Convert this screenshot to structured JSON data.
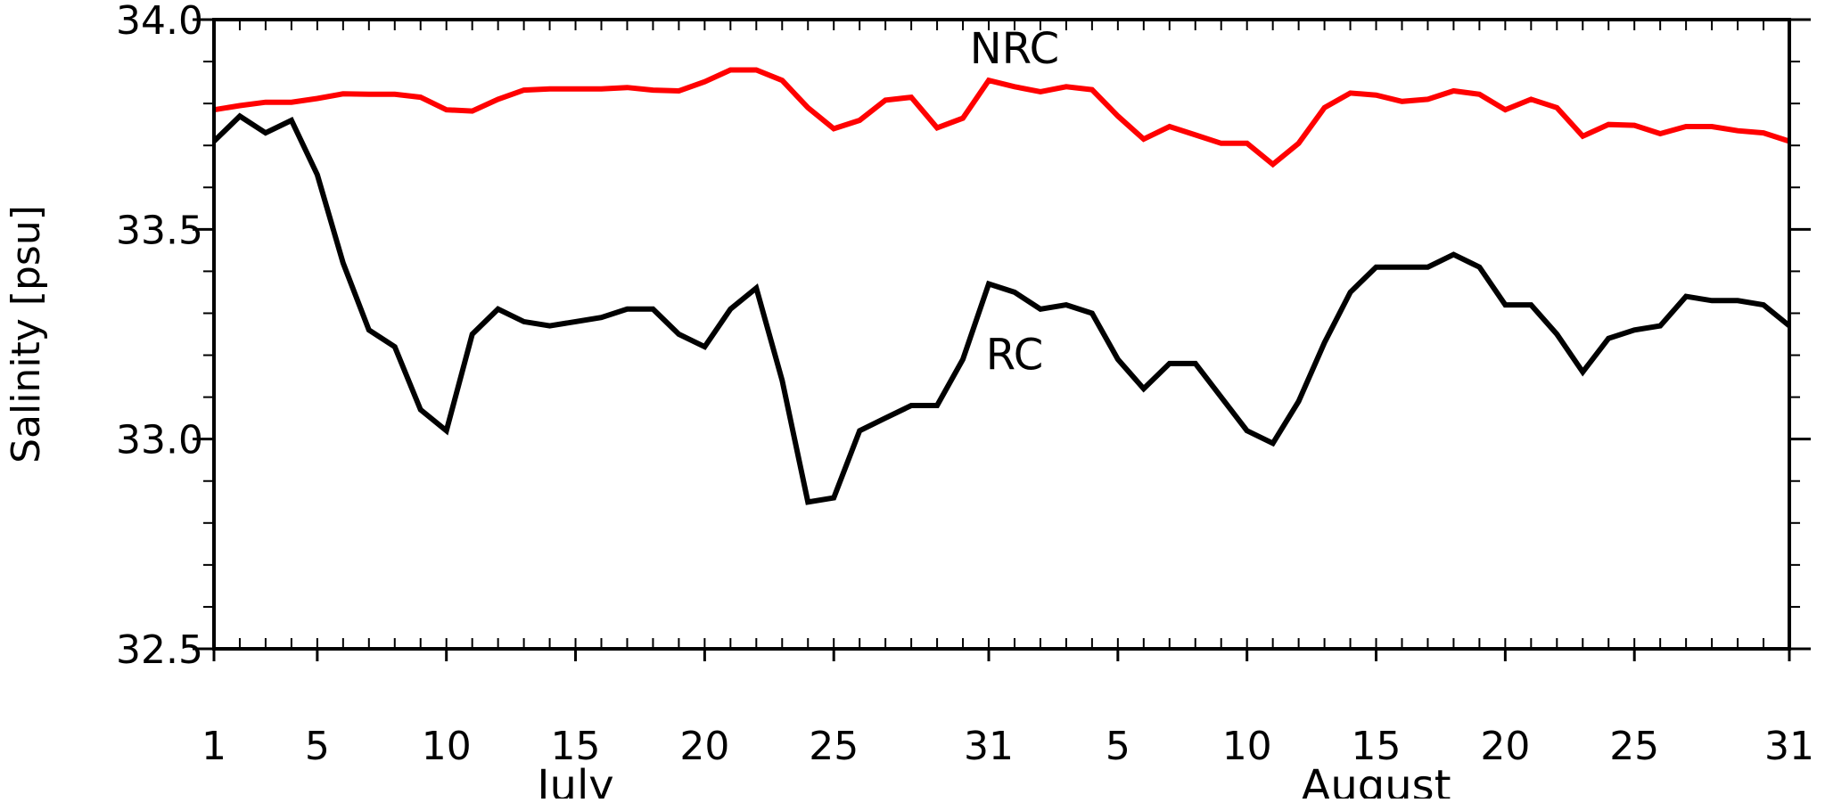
{
  "chart_data": {
    "type": "line",
    "xlabel": "",
    "ylabel": "Salinity [psu]",
    "ylim": [
      32.5,
      34.0
    ],
    "yticks": [
      "32.5",
      "33.0",
      "33.5",
      "34.0"
    ],
    "x_range": [
      "2019-07-01",
      "2019-08-31"
    ],
    "x_ticks": [
      {
        "date": "2019-07-01",
        "label": "1"
      },
      {
        "date": "2019-07-05",
        "label": "5"
      },
      {
        "date": "2019-07-10",
        "label": "10"
      },
      {
        "date": "2019-07-15",
        "label": "15"
      },
      {
        "date": "2019-07-20",
        "label": "20"
      },
      {
        "date": "2019-07-25",
        "label": "25"
      },
      {
        "date": "2019-07-31",
        "label": "31"
      },
      {
        "date": "2019-08-05",
        "label": "5"
      },
      {
        "date": "2019-08-10",
        "label": "10"
      },
      {
        "date": "2019-08-15",
        "label": "15"
      },
      {
        "date": "2019-08-20",
        "label": "20"
      },
      {
        "date": "2019-08-25",
        "label": "25"
      },
      {
        "date": "2019-08-31",
        "label": "31"
      }
    ],
    "months": [
      {
        "label": "July",
        "date": "2019-07-15"
      },
      {
        "label": "August",
        "date": "2019-08-15"
      }
    ],
    "grid": false,
    "legend": "none",
    "series": [
      {
        "name": "NRC",
        "color": "#ff0000",
        "label_date": "2019-08-01",
        "label_value": 33.93,
        "values": [
          33.785,
          33.795,
          33.803,
          33.803,
          33.812,
          33.823,
          33.822,
          33.822,
          33.815,
          33.785,
          33.782,
          33.81,
          33.832,
          33.835,
          33.835,
          33.835,
          33.838,
          33.832,
          33.83,
          33.852,
          33.88,
          33.88,
          33.855,
          33.79,
          33.74,
          33.76,
          33.808,
          33.815,
          33.742,
          33.765,
          33.855,
          33.84,
          33.828,
          33.84,
          33.833,
          33.77,
          33.715,
          33.745,
          33.725,
          33.705,
          33.705,
          33.655,
          33.705,
          33.79,
          33.825,
          33.82,
          33.805,
          33.81,
          33.83,
          33.822,
          33.785,
          33.81,
          33.79,
          33.722,
          33.75,
          33.748,
          33.728,
          33.745,
          33.745,
          33.735,
          33.73,
          33.71
        ]
      },
      {
        "name": "RC",
        "color": "#000000",
        "label_date": "2019-08-01",
        "label_value": 33.2,
        "values": [
          33.71,
          33.77,
          33.73,
          33.76,
          33.63,
          33.42,
          33.26,
          33.22,
          33.07,
          33.02,
          33.25,
          33.31,
          33.28,
          33.27,
          33.28,
          33.29,
          33.31,
          33.31,
          33.25,
          33.22,
          33.31,
          33.36,
          33.14,
          32.85,
          32.86,
          33.02,
          33.05,
          33.08,
          33.08,
          33.19,
          33.37,
          33.35,
          33.31,
          33.32,
          33.3,
          33.19,
          33.12,
          33.18,
          33.18,
          33.1,
          33.02,
          32.99,
          33.09,
          33.23,
          33.35,
          33.41,
          33.41,
          33.41,
          33.44,
          33.41,
          33.32,
          33.32,
          33.25,
          33.16,
          33.24,
          33.26,
          33.27,
          33.34,
          33.33,
          33.33,
          33.32,
          33.27
        ]
      }
    ]
  }
}
